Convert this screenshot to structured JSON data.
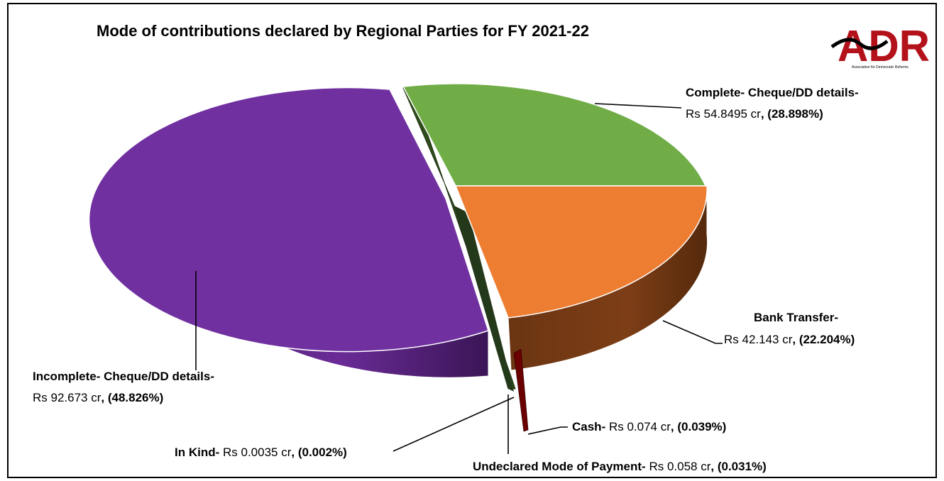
{
  "logo": {
    "text": "ADR",
    "subtitle": "Association for Democratic Reforms",
    "color": "#b3121b"
  },
  "chart_data": {
    "type": "pie",
    "title": "Mode of contributions declared by Regional Parties for FY 2021-22",
    "unit": "Rs cr",
    "slices": [
      {
        "id": "complete",
        "label": "Complete- Cheque/DD details-",
        "amount_text": "Rs 54.8495 cr",
        "percent_text": "(28.898%)",
        "value": 54.8495,
        "percent": 28.898,
        "color": "#70ad47",
        "side_color": "#3f6a24"
      },
      {
        "id": "bank",
        "label": "Bank Transfer-",
        "amount_text": "Rs 42.143 cr",
        "percent_text": "(22.204%)",
        "value": 42.143,
        "percent": 22.204,
        "color": "#ed7d31",
        "side_color": "#7a3a12"
      },
      {
        "id": "cash",
        "label": "Cash-",
        "amount_text": "Rs 0.074 cr",
        "percent_text": "(0.039%)",
        "value": 0.074,
        "percent": 0.039,
        "color": "#c00000",
        "side_color": "#5a0a0a"
      },
      {
        "id": "undeclared",
        "label": "Undeclared Mode of Payment-",
        "amount_text": "Rs 0.058 cr",
        "percent_text": "(0.031%)",
        "value": 0.058,
        "percent": 0.031,
        "color": "#6b2e8a",
        "side_color": "#3b1450"
      },
      {
        "id": "inkind",
        "label": "In Kind-",
        "amount_text": "Rs 0.0035 cr",
        "percent_text": "(0.002%)",
        "value": 0.0035,
        "percent": 0.002,
        "color": "#375623",
        "side_color": "#24391a"
      },
      {
        "id": "incomplete",
        "label": "Incomplete- Cheque/DD details-",
        "amount_text": "Rs 92.673 cr",
        "percent_text": "(48.826%)",
        "value": 92.673,
        "percent": 48.826,
        "color": "#7030a0",
        "side_color": "#451a66"
      }
    ],
    "legend": "none"
  }
}
